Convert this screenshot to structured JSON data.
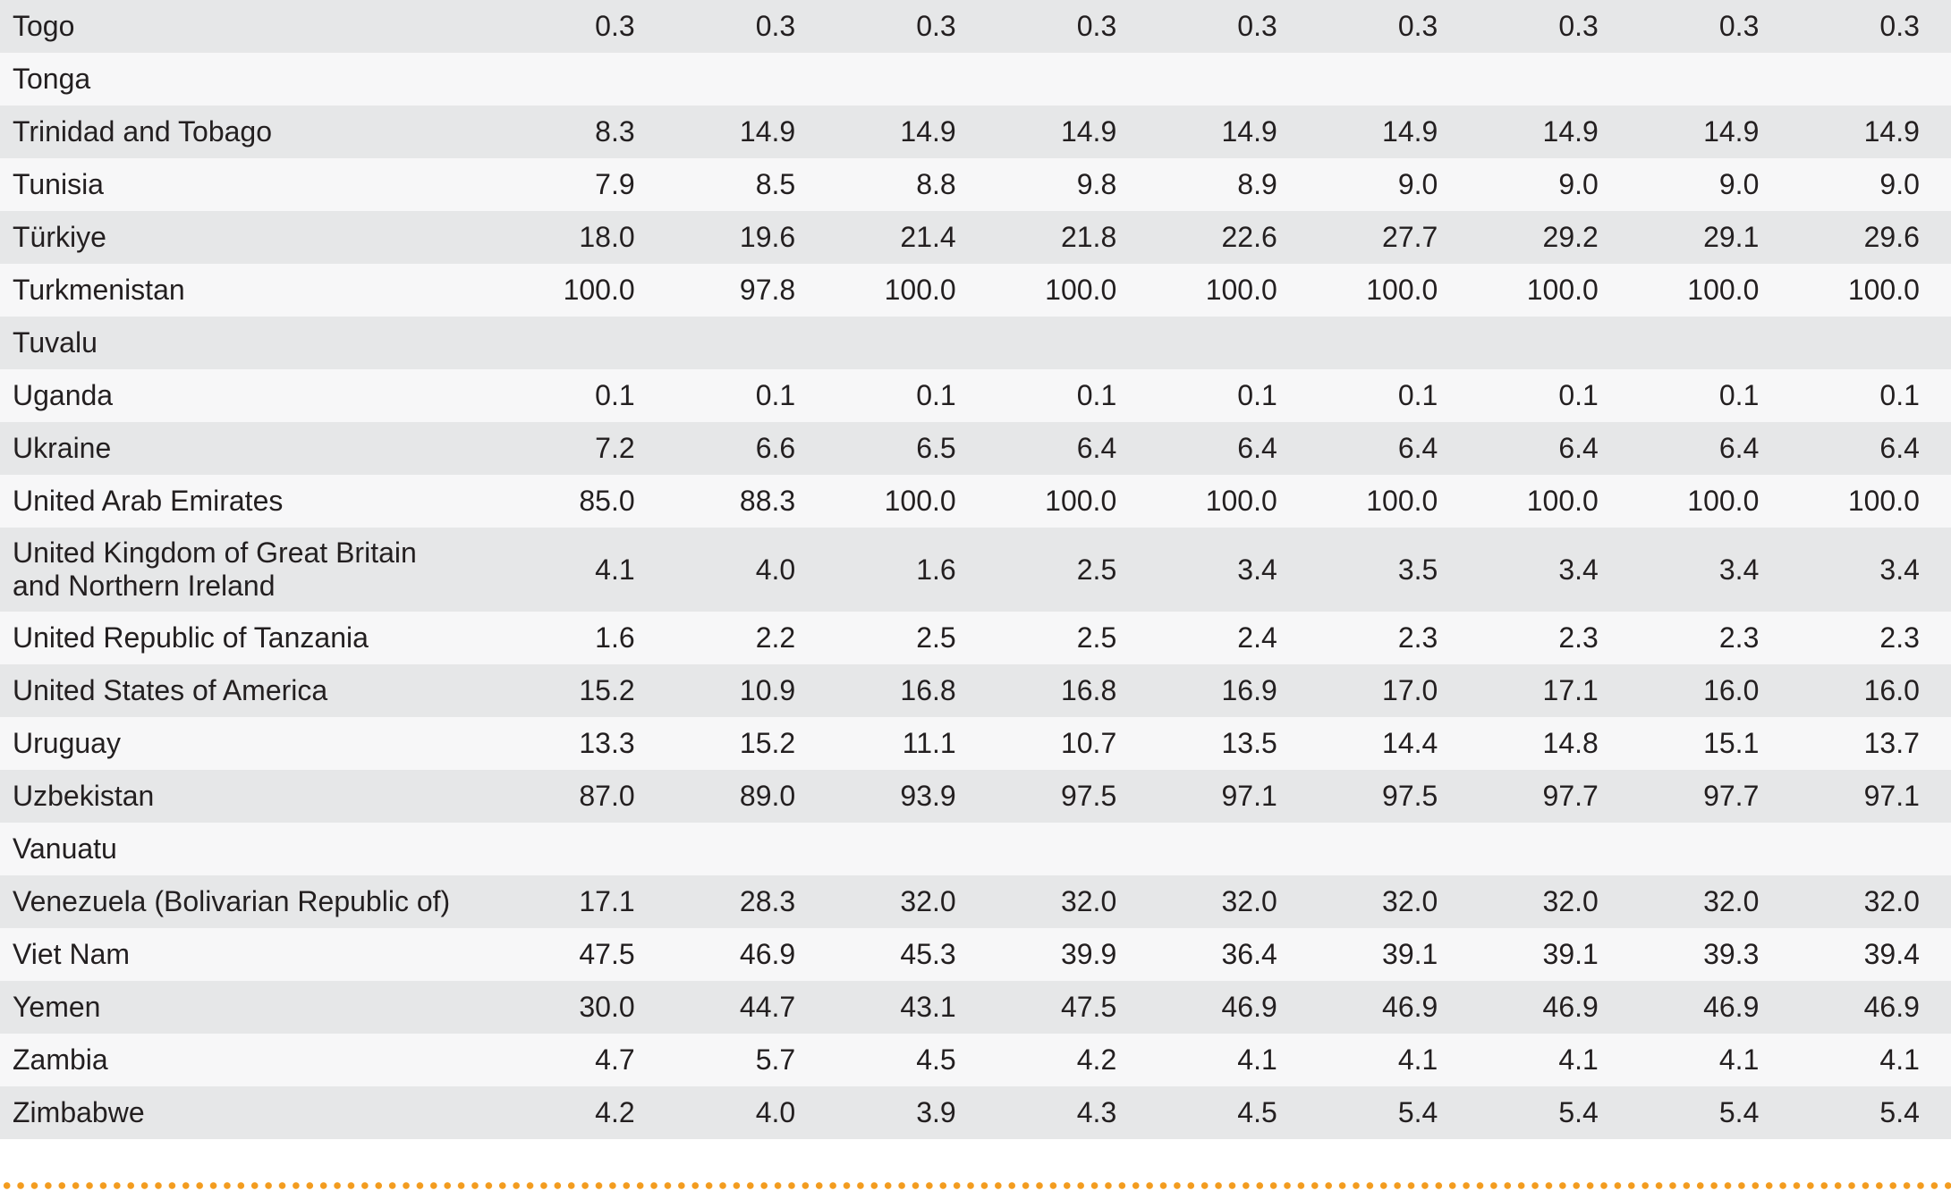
{
  "table": {
    "rows": [
      {
        "country": "Togo",
        "values": [
          "0.3",
          "0.3",
          "0.3",
          "0.3",
          "0.3",
          "0.3",
          "0.3",
          "0.3",
          "0.3"
        ]
      },
      {
        "country": "Tonga",
        "values": [
          "",
          "",
          "",
          "",
          "",
          "",
          "",
          "",
          ""
        ]
      },
      {
        "country": "Trinidad and Tobago",
        "values": [
          "8.3",
          "14.9",
          "14.9",
          "14.9",
          "14.9",
          "14.9",
          "14.9",
          "14.9",
          "14.9"
        ]
      },
      {
        "country": "Tunisia",
        "values": [
          "7.9",
          "8.5",
          "8.8",
          "9.8",
          "8.9",
          "9.0",
          "9.0",
          "9.0",
          "9.0"
        ]
      },
      {
        "country": "Türkiye",
        "values": [
          "18.0",
          "19.6",
          "21.4",
          "21.8",
          "22.6",
          "27.7",
          "29.2",
          "29.1",
          "29.6"
        ]
      },
      {
        "country": "Turkmenistan",
        "values": [
          "100.0",
          "97.8",
          "100.0",
          "100.0",
          "100.0",
          "100.0",
          "100.0",
          "100.0",
          "100.0"
        ]
      },
      {
        "country": "Tuvalu",
        "values": [
          "",
          "",
          "",
          "",
          "",
          "",
          "",
          "",
          ""
        ]
      },
      {
        "country": "Uganda",
        "values": [
          "0.1",
          "0.1",
          "0.1",
          "0.1",
          "0.1",
          "0.1",
          "0.1",
          "0.1",
          "0.1"
        ]
      },
      {
        "country": "Ukraine",
        "values": [
          "7.2",
          "6.6",
          "6.5",
          "6.4",
          "6.4",
          "6.4",
          "6.4",
          "6.4",
          "6.4"
        ]
      },
      {
        "country": "United Arab Emirates",
        "values": [
          "85.0",
          "88.3",
          "100.0",
          "100.0",
          "100.0",
          "100.0",
          "100.0",
          "100.0",
          "100.0"
        ]
      },
      {
        "country": "United Kingdom of Great Britain and Northern Ireland",
        "values": [
          "4.1",
          "4.0",
          "1.6",
          "2.5",
          "3.4",
          "3.5",
          "3.4",
          "3.4",
          "3.4"
        ]
      },
      {
        "country": "United Republic of Tanzania",
        "values": [
          "1.6",
          "2.2",
          "2.5",
          "2.5",
          "2.4",
          "2.3",
          "2.3",
          "2.3",
          "2.3"
        ]
      },
      {
        "country": "United States of America",
        "values": [
          "15.2",
          "10.9",
          "16.8",
          "16.8",
          "16.9",
          "17.0",
          "17.1",
          "16.0",
          "16.0"
        ]
      },
      {
        "country": "Uruguay",
        "values": [
          "13.3",
          "15.2",
          "11.1",
          "10.7",
          "13.5",
          "14.4",
          "14.8",
          "15.1",
          "13.7"
        ]
      },
      {
        "country": "Uzbekistan",
        "values": [
          "87.0",
          "89.0",
          "93.9",
          "97.5",
          "97.1",
          "97.5",
          "97.7",
          "97.7",
          "97.1"
        ]
      },
      {
        "country": "Vanuatu",
        "values": [
          "",
          "",
          "",
          "",
          "",
          "",
          "",
          "",
          ""
        ]
      },
      {
        "country": "Venezuela (Bolivarian Republic of)",
        "values": [
          "17.1",
          "28.3",
          "32.0",
          "32.0",
          "32.0",
          "32.0",
          "32.0",
          "32.0",
          "32.0"
        ]
      },
      {
        "country": "Viet Nam",
        "values": [
          "47.5",
          "46.9",
          "45.3",
          "39.9",
          "36.4",
          "39.1",
          "39.1",
          "39.3",
          "39.4"
        ]
      },
      {
        "country": "Yemen",
        "values": [
          "30.0",
          "44.7",
          "43.1",
          "47.5",
          "46.9",
          "46.9",
          "46.9",
          "46.9",
          "46.9"
        ]
      },
      {
        "country": "Zambia",
        "values": [
          "4.7",
          "5.7",
          "4.5",
          "4.2",
          "4.1",
          "4.1",
          "4.1",
          "4.1",
          "4.1"
        ]
      },
      {
        "country": "Zimbabwe",
        "values": [
          "4.2",
          "4.0",
          "3.9",
          "4.3",
          "4.5",
          "5.4",
          "5.4",
          "5.4",
          "5.4"
        ]
      }
    ]
  },
  "colors": {
    "row_shaded": "#e6e7e8",
    "row_plain": "#f7f7f8",
    "dotted_rule": "#f39c1f",
    "text": "#231f20"
  }
}
